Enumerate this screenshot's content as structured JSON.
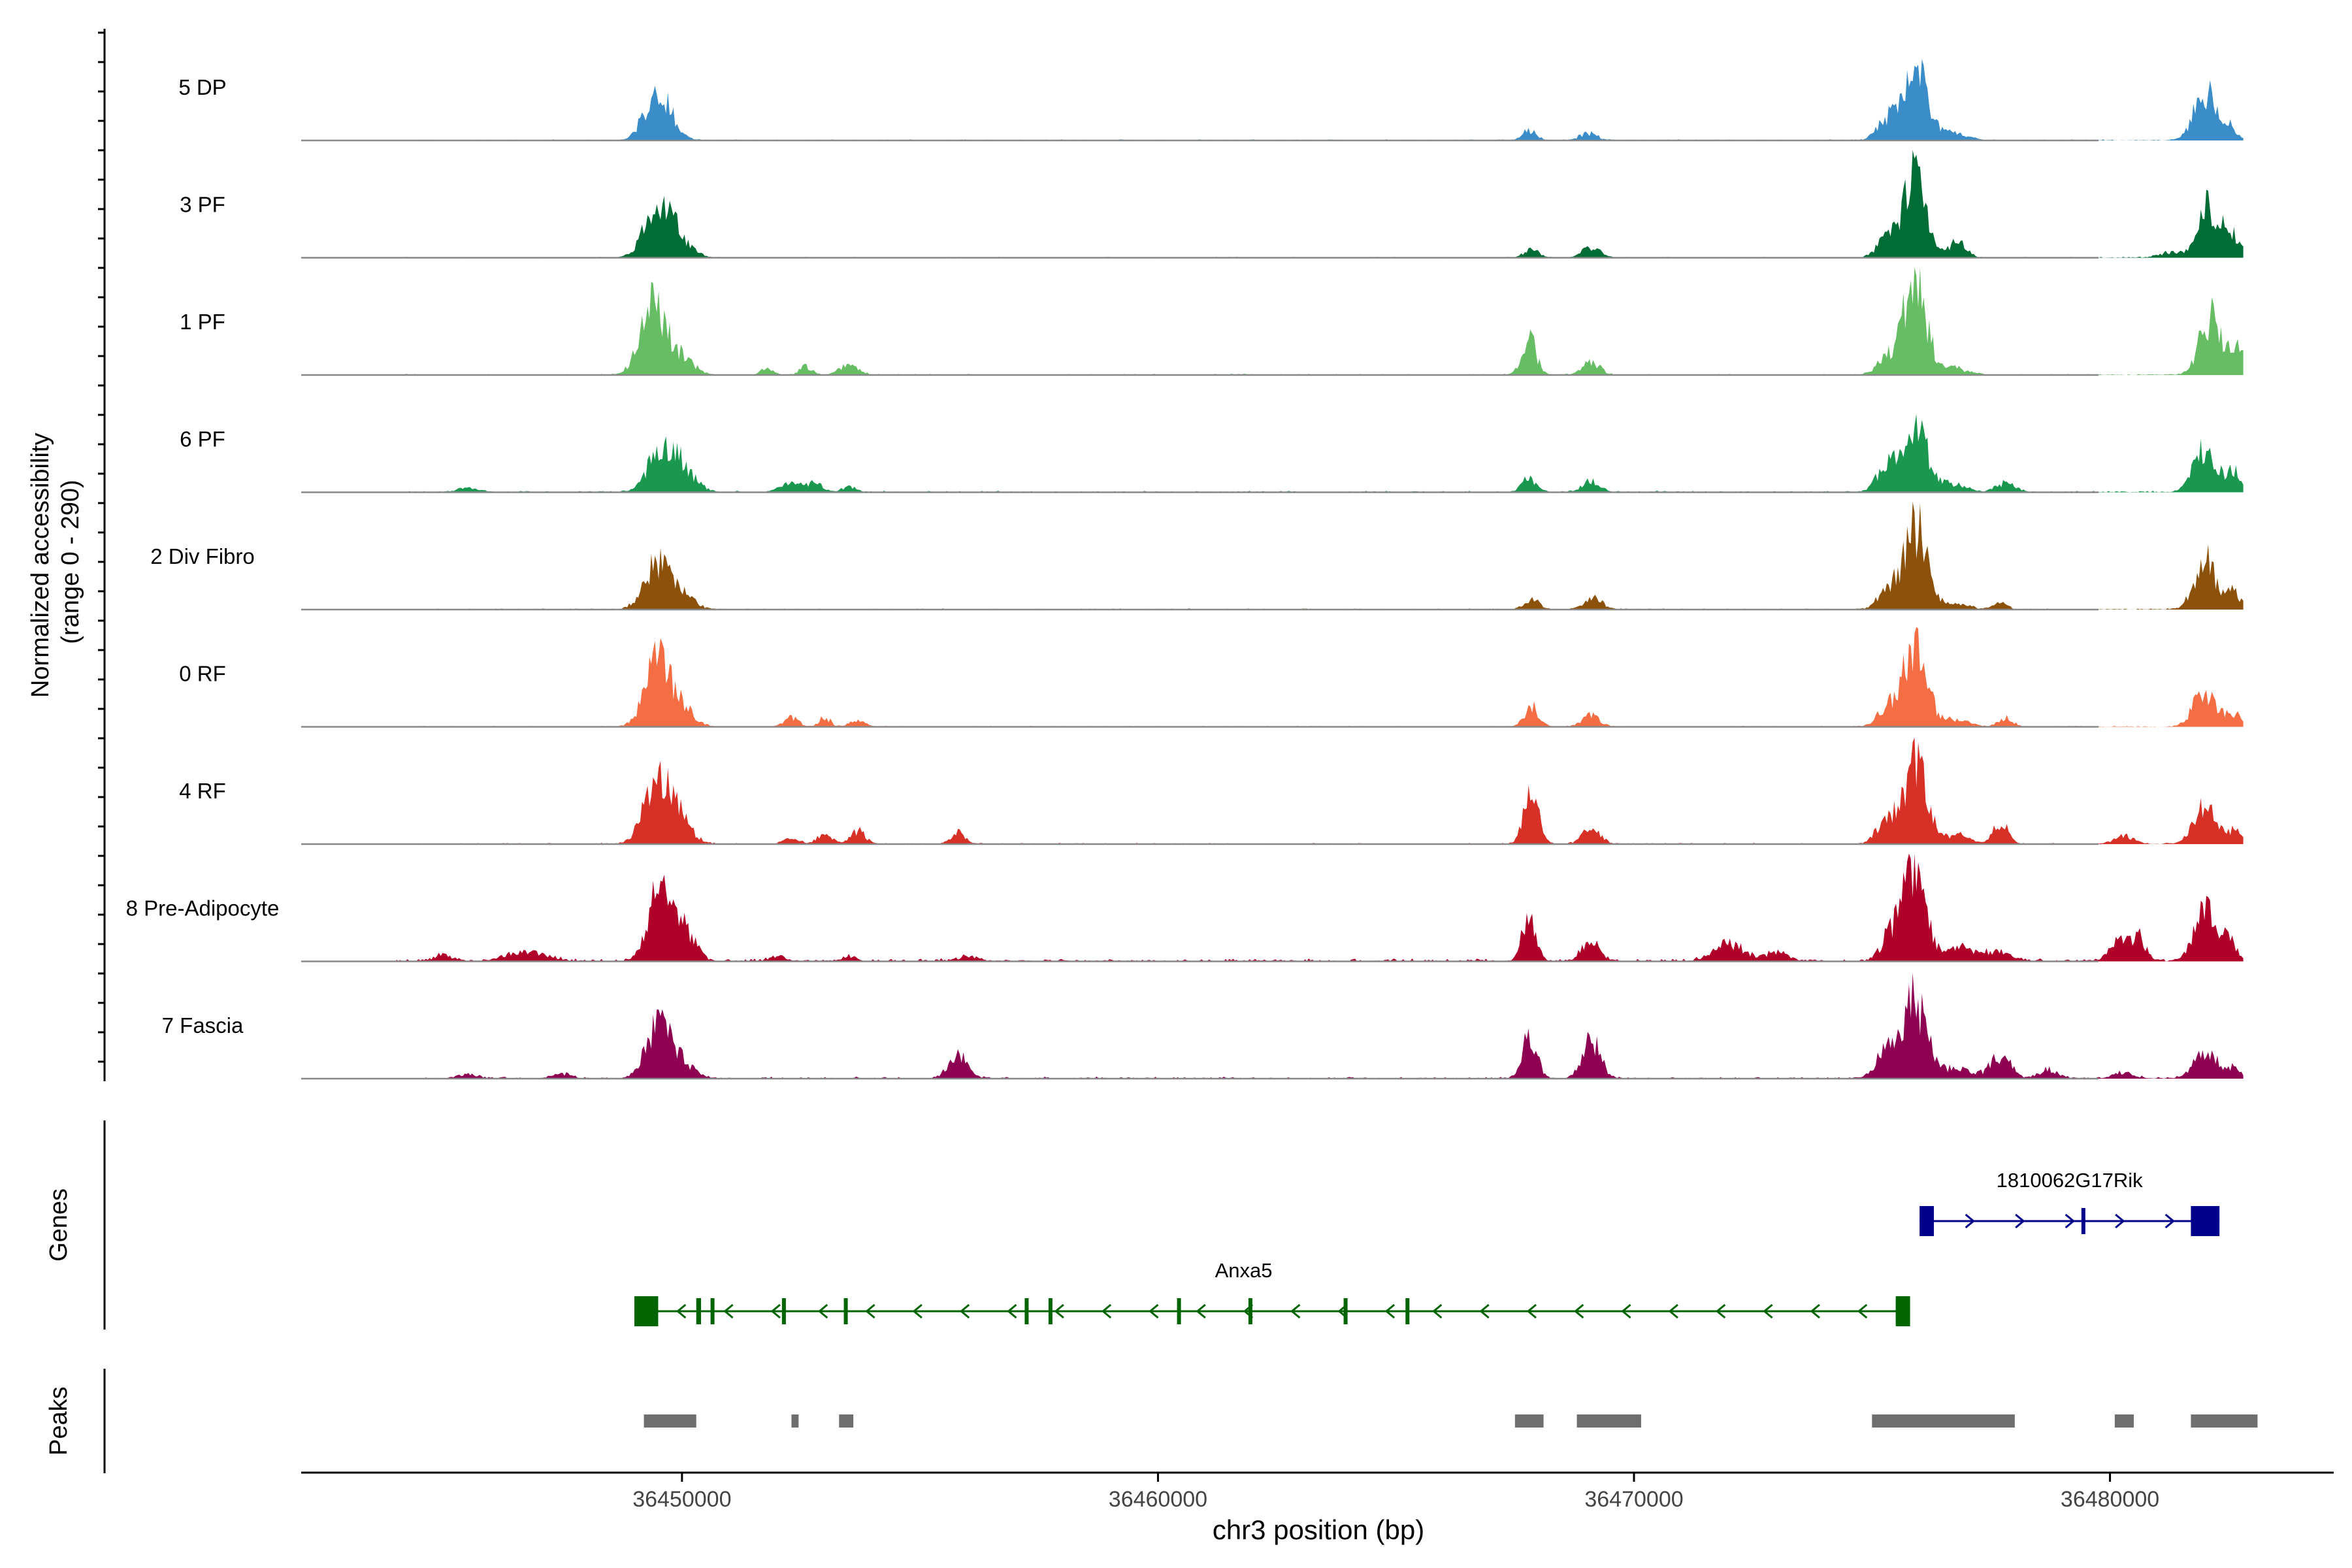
{
  "chart_data": {
    "type": "area",
    "title": "",
    "ylabel_line1": "Normalized accessibility",
    "ylabel_line2": "(range 0 - 290)",
    "ylim": [
      0,
      290
    ],
    "xlabel": "chr3 position (bp)",
    "xlim": [
      36442000,
      36484700
    ],
    "ticks": [
      {
        "value": 36450000,
        "label": "36450000"
      },
      {
        "value": 36460000,
        "label": "36460000"
      },
      {
        "value": 36470000,
        "label": "36470000"
      },
      {
        "value": 36480000,
        "label": "36480000"
      }
    ],
    "data_range": [
      36444000,
      36482800
    ],
    "tracks": [
      {
        "name": "5 DP",
        "color": "#3a8dc8",
        "peaks": [
          [
            36449600,
            0.34,
            250
          ],
          [
            36449300,
            0.18,
            200
          ],
          [
            36467800,
            0.09,
            150
          ],
          [
            36469050,
            0.06,
            200
          ],
          [
            36475900,
            0.7,
            250
          ],
          [
            36475300,
            0.18,
            200
          ],
          [
            36476700,
            0.06,
            300
          ],
          [
            36482000,
            0.45,
            230
          ],
          [
            36482500,
            0.12,
            150
          ]
        ],
        "noise": 0.012,
        "seed": 11
      },
      {
        "name": "3 PF",
        "color": "#006d36",
        "peaks": [
          [
            36449500,
            0.55,
            270
          ],
          [
            36450000,
            0.12,
            250
          ],
          [
            36467850,
            0.08,
            150
          ],
          [
            36469100,
            0.1,
            180
          ],
          [
            36475900,
            0.8,
            240
          ],
          [
            36475300,
            0.17,
            200
          ],
          [
            36476800,
            0.14,
            180
          ],
          [
            36482100,
            0.48,
            220
          ],
          [
            36482600,
            0.18,
            150
          ],
          [
            36481300,
            0.05,
            250
          ]
        ],
        "noise": 0.01,
        "seed": 23
      },
      {
        "name": "1 PF",
        "color": "#66bd63",
        "peaks": [
          [
            36449400,
            0.68,
            260
          ],
          [
            36450000,
            0.15,
            250
          ],
          [
            36451800,
            0.07,
            120
          ],
          [
            36452600,
            0.08,
            120
          ],
          [
            36453500,
            0.1,
            180
          ],
          [
            36467800,
            0.33,
            150
          ],
          [
            36469100,
            0.12,
            180
          ],
          [
            36475900,
            0.85,
            240
          ],
          [
            36475300,
            0.14,
            200
          ],
          [
            36476700,
            0.06,
            300
          ],
          [
            36482100,
            0.52,
            220
          ],
          [
            36482700,
            0.24,
            180
          ]
        ],
        "noise": 0.013,
        "seed": 37
      },
      {
        "name": "6 PF",
        "color": "#1a9850",
        "peaks": [
          [
            36449600,
            0.44,
            270
          ],
          [
            36450100,
            0.15,
            250
          ],
          [
            36445500,
            0.04,
            200
          ],
          [
            36452300,
            0.1,
            200
          ],
          [
            36452800,
            0.08,
            150
          ],
          [
            36453500,
            0.05,
            150
          ],
          [
            36467800,
            0.13,
            150
          ],
          [
            36469100,
            0.1,
            180
          ],
          [
            36475900,
            0.62,
            250
          ],
          [
            36475300,
            0.23,
            200
          ],
          [
            36476700,
            0.08,
            250
          ],
          [
            36477800,
            0.08,
            200
          ],
          [
            36482000,
            0.4,
            230
          ],
          [
            36482600,
            0.18,
            150
          ]
        ],
        "noise": 0.016,
        "seed": 41
      },
      {
        "name": "2 Div Fibro",
        "color": "#8c510a",
        "peaks": [
          [
            36449500,
            0.44,
            270
          ],
          [
            36450000,
            0.14,
            250
          ],
          [
            36467850,
            0.1,
            150
          ],
          [
            36469150,
            0.12,
            180
          ],
          [
            36475900,
            0.78,
            250
          ],
          [
            36475300,
            0.14,
            200
          ],
          [
            36476800,
            0.05,
            250
          ],
          [
            36477700,
            0.05,
            150
          ],
          [
            36482000,
            0.48,
            220
          ],
          [
            36482600,
            0.15,
            150
          ]
        ],
        "noise": 0.012,
        "seed": 53
      },
      {
        "name": "0 RF",
        "color": "#f46d43",
        "peaks": [
          [
            36449500,
            0.58,
            270
          ],
          [
            36450000,
            0.15,
            250
          ],
          [
            36452300,
            0.08,
            150
          ],
          [
            36453000,
            0.08,
            120
          ],
          [
            36453700,
            0.06,
            150
          ],
          [
            36467850,
            0.18,
            150
          ],
          [
            36469100,
            0.1,
            180
          ],
          [
            36475900,
            0.72,
            250
          ],
          [
            36475300,
            0.16,
            200
          ],
          [
            36476800,
            0.07,
            250
          ],
          [
            36477800,
            0.08,
            150
          ],
          [
            36482000,
            0.34,
            230
          ],
          [
            36482600,
            0.12,
            150
          ]
        ],
        "noise": 0.011,
        "seed": 67
      },
      {
        "name": "4 RF",
        "color": "#d73027",
        "peaks": [
          [
            36449500,
            0.65,
            270
          ],
          [
            36450000,
            0.16,
            250
          ],
          [
            36452300,
            0.06,
            150
          ],
          [
            36453000,
            0.1,
            150
          ],
          [
            36453700,
            0.12,
            150
          ],
          [
            36455800,
            0.1,
            150
          ],
          [
            36467850,
            0.52,
            150
          ],
          [
            36469100,
            0.16,
            180
          ],
          [
            36475900,
            0.72,
            250
          ],
          [
            36475300,
            0.22,
            200
          ],
          [
            36476800,
            0.08,
            250
          ],
          [
            36477700,
            0.2,
            150
          ],
          [
            36480300,
            0.07,
            200
          ],
          [
            36482000,
            0.33,
            230
          ],
          [
            36482600,
            0.12,
            150
          ]
        ],
        "noise": 0.013,
        "seed": 79
      },
      {
        "name": "8 Pre-Adipocyte",
        "color": "#b0002a",
        "peaks": [
          [
            36449500,
            0.58,
            220
          ],
          [
            36450000,
            0.3,
            250
          ],
          [
            36445000,
            0.06,
            200
          ],
          [
            36446500,
            0.06,
            300
          ],
          [
            36447000,
            0.05,
            300
          ],
          [
            36452000,
            0.05,
            150
          ],
          [
            36453500,
            0.04,
            150
          ],
          [
            36456000,
            0.04,
            200
          ],
          [
            36467800,
            0.5,
            130
          ],
          [
            36469100,
            0.2,
            180
          ],
          [
            36472000,
            0.17,
            300
          ],
          [
            36473000,
            0.08,
            250
          ],
          [
            36475900,
            0.92,
            220
          ],
          [
            36475400,
            0.25,
            200
          ],
          [
            36476800,
            0.13,
            250
          ],
          [
            36477600,
            0.08,
            300
          ],
          [
            36480200,
            0.18,
            200
          ],
          [
            36480600,
            0.2,
            150
          ],
          [
            36482000,
            0.44,
            230
          ],
          [
            36482500,
            0.16,
            150
          ]
        ],
        "noise": 0.03,
        "seed": 97
      },
      {
        "name": "7 Fascia",
        "color": "#8e0152",
        "peaks": [
          [
            36449500,
            0.5,
            250
          ],
          [
            36450000,
            0.15,
            250
          ],
          [
            36445500,
            0.04,
            200
          ],
          [
            36447500,
            0.04,
            200
          ],
          [
            36455800,
            0.2,
            200
          ],
          [
            36467800,
            0.4,
            150
          ],
          [
            36469100,
            0.38,
            180
          ],
          [
            36475900,
            0.72,
            240
          ],
          [
            36475300,
            0.28,
            200
          ],
          [
            36476800,
            0.1,
            300
          ],
          [
            36477700,
            0.22,
            200
          ],
          [
            36478700,
            0.08,
            200
          ],
          [
            36480300,
            0.06,
            200
          ],
          [
            36482000,
            0.26,
            230
          ],
          [
            36482600,
            0.1,
            150
          ]
        ],
        "noise": 0.02,
        "seed": 101
      }
    ],
    "genes_label": "Genes",
    "genes": [
      {
        "name": "1810062G17Rik",
        "color": "#00008b",
        "strand": "+",
        "start": 36476000,
        "end": 36482300,
        "exons": [
          [
            36476000,
            36476300
          ],
          [
            36479400,
            36479450
          ],
          [
            36481700,
            36482300
          ]
        ],
        "row": 0
      },
      {
        "name": "Anxa5",
        "color": "#006400",
        "strand": "-",
        "start": 36449000,
        "end": 36475800,
        "exons": [
          [
            36449000,
            36449500
          ],
          [
            36450300,
            36450400
          ],
          [
            36450600,
            36450650
          ],
          [
            36452100,
            36452150
          ],
          [
            36453400,
            36453450
          ],
          [
            36457200,
            36457250
          ],
          [
            36457700,
            36457750
          ],
          [
            36460400,
            36460450
          ],
          [
            36461900,
            36461950
          ],
          [
            36463900,
            36463950
          ],
          [
            36465200,
            36465250
          ],
          [
            36475500,
            36475550
          ],
          [
            36475500,
            36475800
          ]
        ],
        "row": 1
      }
    ],
    "peaks_label": "Peaks",
    "peak_color": "#6e6e6e",
    "peak_regions": [
      [
        36449200,
        36450300
      ],
      [
        36452300,
        36452450
      ],
      [
        36453300,
        36453600
      ],
      [
        36467500,
        36468100
      ],
      [
        36468800,
        36470150
      ],
      [
        36475000,
        36478000
      ],
      [
        36480100,
        36480500
      ],
      [
        36481700,
        36483100
      ]
    ]
  }
}
